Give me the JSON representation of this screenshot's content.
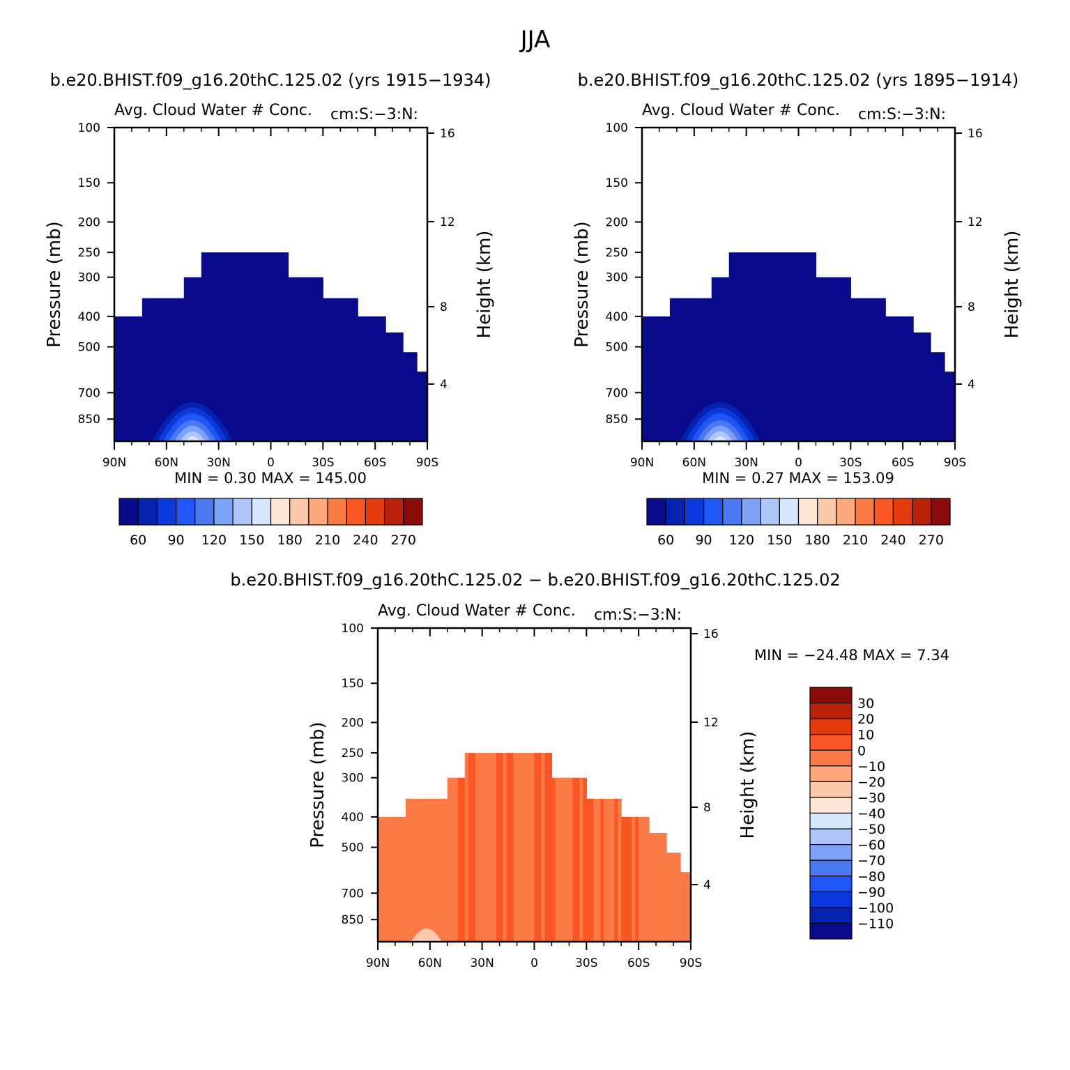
{
  "page_title": "JJA",
  "colors": {
    "palette": [
      "#0a0a8c",
      "#0422b0",
      "#0a3ade",
      "#1f56f5",
      "#4a78f0",
      "#7ea2f5",
      "#aec6fa",
      "#d6e6fd",
      "#fde6d4",
      "#fcc9aa",
      "#fca87a",
      "#fc7a46",
      "#fb5524",
      "#e43b0c",
      "#ba2207",
      "#8c0a0a"
    ]
  },
  "common": {
    "ylabel": "Pressure (mb)",
    "y2label": "Height (km)",
    "pressure_ticks": [
      "100",
      "150",
      "200",
      "250",
      "300",
      "400",
      "500",
      "700",
      "850"
    ],
    "height_ticks": [
      "16",
      "12",
      "8",
      "4"
    ],
    "lat_ticks": [
      "90N",
      "60N",
      "30N",
      "0",
      "30S",
      "60S",
      "90S"
    ]
  },
  "chart_data": [
    {
      "type": "heatmap",
      "title": "b.e20.BHIST.f09_g16.20thC.125.02 (yrs 1915−1934)",
      "subtitle_left": "Avg. Cloud Water # Conc.",
      "subtitle_right": "cm:S:−3:N:",
      "xlabel": "",
      "ylabel": "Pressure (mb)",
      "y2label": "Height (km)",
      "min_label": "MIN =",
      "min_value": "0.30",
      "max_label": "MAX =",
      "max_value": "145.00",
      "colorbar_labels": [
        "60",
        "90",
        "120",
        "150",
        "180",
        "210",
        "240",
        "270"
      ],
      "ylim": [
        100,
        1000
      ],
      "xlim": [
        "90N",
        "90S"
      ],
      "field_top_pressure": [
        [
          -90,
          400
        ],
        [
          -75,
          350
        ],
        [
          -50,
          300
        ],
        [
          -40,
          250
        ],
        [
          -5,
          250
        ],
        [
          10,
          300
        ],
        [
          30,
          350
        ],
        [
          50,
          400
        ],
        [
          65,
          450
        ],
        [
          75,
          520
        ],
        [
          83,
          600
        ],
        [
          90,
          600
        ]
      ],
      "peak": {
        "lat": -45,
        "pressure": 880,
        "value": 145.0
      }
    },
    {
      "type": "heatmap",
      "title": "b.e20.BHIST.f09_g16.20thC.125.02 (yrs 1895−1914)",
      "subtitle_left": "Avg. Cloud Water # Conc.",
      "subtitle_right": "cm:S:−3:N:",
      "xlabel": "",
      "ylabel": "Pressure (mb)",
      "y2label": "Height (km)",
      "min_label": "MIN =",
      "min_value": "0.27",
      "max_label": "MAX =",
      "max_value": "153.09",
      "colorbar_labels": [
        "60",
        "90",
        "120",
        "150",
        "180",
        "210",
        "240",
        "270"
      ],
      "ylim": [
        100,
        1000
      ],
      "xlim": [
        "90N",
        "90S"
      ],
      "field_top_pressure": [
        [
          -90,
          400
        ],
        [
          -75,
          350
        ],
        [
          -50,
          300
        ],
        [
          -40,
          250
        ],
        [
          -5,
          250
        ],
        [
          10,
          300
        ],
        [
          30,
          350
        ],
        [
          50,
          400
        ],
        [
          65,
          450
        ],
        [
          75,
          520
        ],
        [
          83,
          600
        ],
        [
          90,
          600
        ]
      ],
      "peak": {
        "lat": -45,
        "pressure": 880,
        "value": 153.09
      }
    },
    {
      "type": "heatmap",
      "title": "b.e20.BHIST.f09_g16.20thC.125.02 − b.e20.BHIST.f09_g16.20thC.125.02",
      "subtitle_left": "Avg. Cloud Water # Conc.",
      "subtitle_right": "cm:S:−3:N:",
      "xlabel": "",
      "ylabel": "Pressure (mb)",
      "y2label": "Height (km)",
      "min_label": "MIN =",
      "min_value": "−24.48",
      "max_label": "MAX =",
      "max_value": "7.34",
      "colorbar_labels": [
        "30",
        "20",
        "10",
        "0",
        "−10",
        "−20",
        "−30",
        "−40",
        "−50",
        "−60",
        "−70",
        "−80",
        "−90",
        "−100",
        "−110"
      ],
      "ylim": [
        100,
        1000
      ],
      "xlim": [
        "90N",
        "90S"
      ],
      "field_top_pressure": [
        [
          -90,
          400
        ],
        [
          -75,
          350
        ],
        [
          -50,
          300
        ],
        [
          -40,
          250
        ],
        [
          -5,
          250
        ],
        [
          10,
          300
        ],
        [
          30,
          350
        ],
        [
          50,
          400
        ],
        [
          65,
          450
        ],
        [
          75,
          520
        ],
        [
          83,
          600
        ],
        [
          90,
          600
        ]
      ],
      "dominant_range": [
        -10,
        0
      ],
      "secondary_range": [
        0,
        10
      ]
    }
  ]
}
